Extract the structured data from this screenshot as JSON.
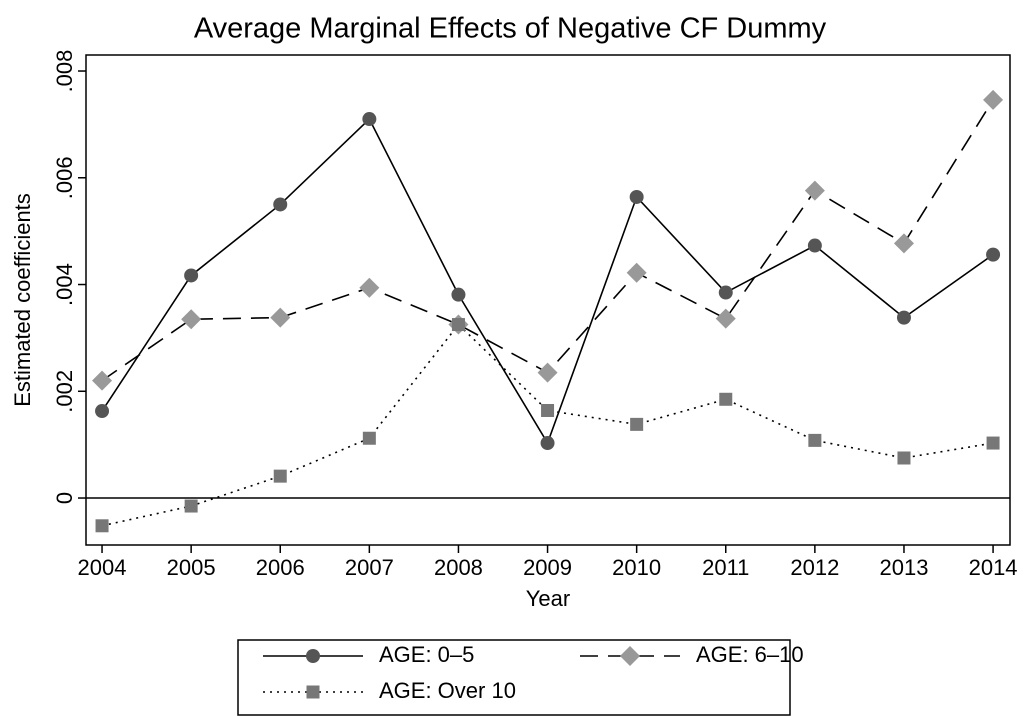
{
  "chart_data": {
    "type": "line",
    "title": "Average Marginal Effects of Negative CF Dummy",
    "x_label": "Year",
    "y_label": "Estimated coefficients",
    "x": [
      2004,
      2005,
      2006,
      2007,
      2008,
      2009,
      2010,
      2011,
      2012,
      2013,
      2014
    ],
    "series": [
      {
        "name": "AGE: 0–5",
        "color": "#555555",
        "line_style": "solid",
        "marker": "circle",
        "values": [
          0.00163,
          0.00417,
          0.0055,
          0.0071,
          0.00381,
          0.00103,
          0.00564,
          0.00385,
          0.00473,
          0.00338,
          0.00456
        ]
      },
      {
        "name": "AGE: 6–10",
        "color": "#999999",
        "line_style": "dashed",
        "marker": "diamond",
        "values": [
          0.0022,
          0.00335,
          0.00338,
          0.00394,
          0.00325,
          0.00235,
          0.00422,
          0.00336,
          0.00576,
          0.00477,
          0.00746
        ]
      },
      {
        "name": "AGE: Over 10",
        "color": "#777777",
        "line_style": "dotted",
        "marker": "square",
        "values": [
          -0.00052,
          -0.00015,
          0.00041,
          0.00112,
          0.00325,
          0.00164,
          0.00138,
          0.00185,
          0.00108,
          0.00075,
          0.00103
        ]
      }
    ],
    "xlim": [
      2003.82,
      2014.19
    ],
    "xticks": [
      2004,
      2005,
      2006,
      2007,
      2008,
      2009,
      2010,
      2011,
      2012,
      2013,
      2014
    ],
    "ylim": [
      -0.00088,
      0.0083
    ],
    "yticks": [
      0,
      {
        "value": 0.002,
        "label": ".002"
      },
      {
        "value": 0.004,
        "label": ".004"
      },
      {
        "value": 0.006,
        "label": ".006"
      },
      {
        "value": 0.008,
        "label": ".008"
      }
    ],
    "zero_line": true,
    "grid": false,
    "legend": "bottom"
  }
}
